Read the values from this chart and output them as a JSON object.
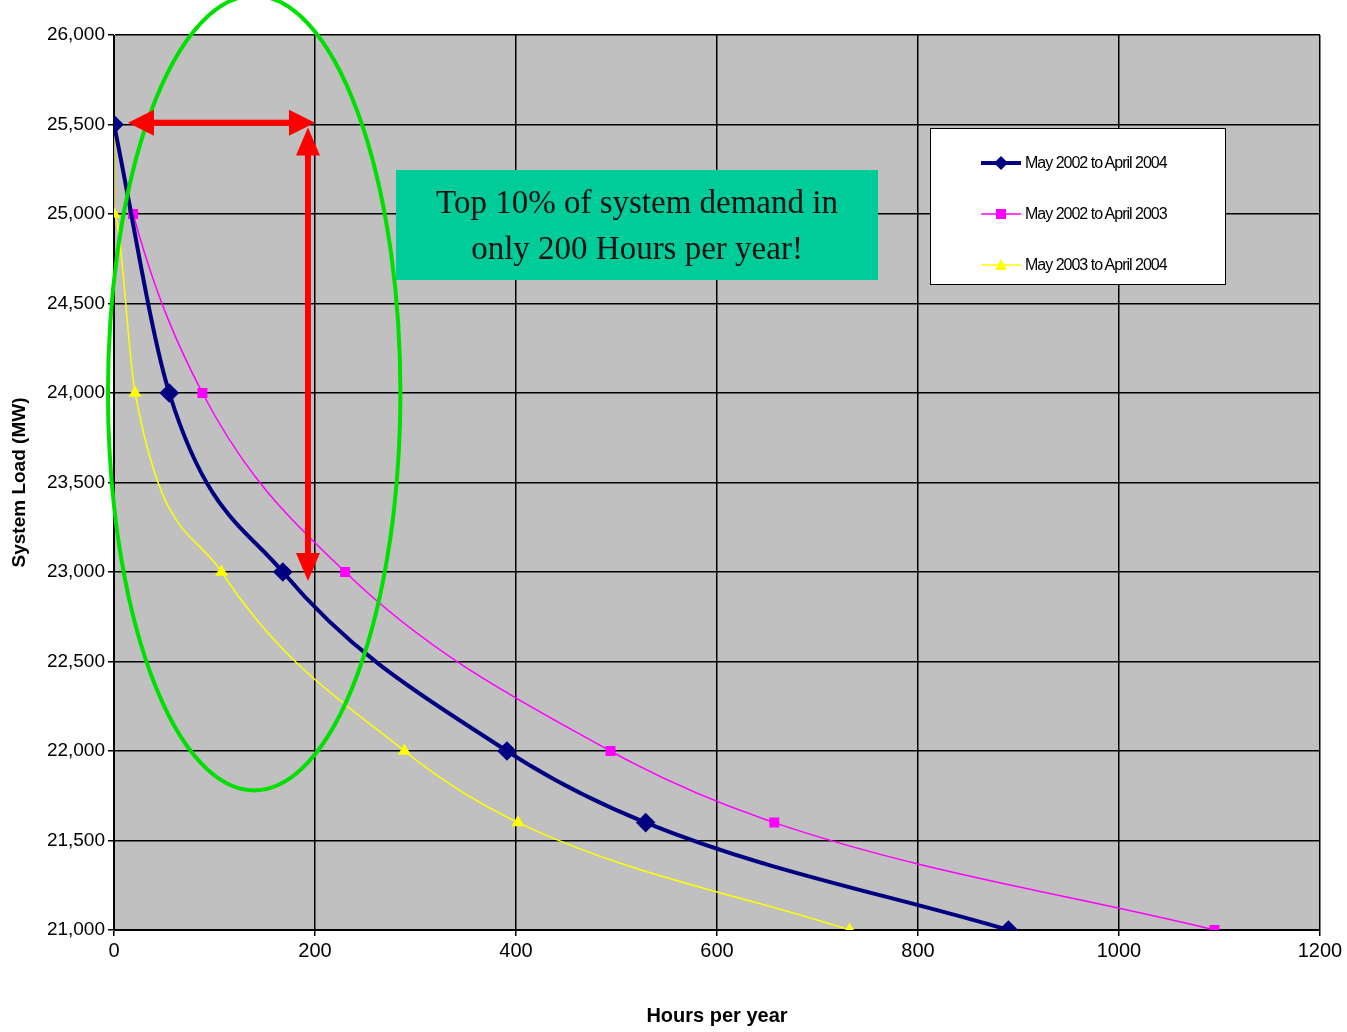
{
  "chart_data": {
    "type": "line",
    "xlabel": "Hours per year",
    "ylabel": "System Load (MW)",
    "xlim": [
      0,
      1200
    ],
    "xticks": [
      0,
      200,
      400,
      600,
      800,
      1000,
      1200
    ],
    "ylim": [
      21000,
      26000
    ],
    "yticks": [
      {
        "value": 21000,
        "label": "21,000"
      },
      {
        "value": 21500,
        "label": "21,500"
      },
      {
        "value": 22000,
        "label": "22,000"
      },
      {
        "value": 22500,
        "label": "22,500"
      },
      {
        "value": 23000,
        "label": "23,000"
      },
      {
        "value": 23500,
        "label": "23,500"
      },
      {
        "value": 24000,
        "label": "24,000"
      },
      {
        "value": 24500,
        "label": "24,500"
      },
      {
        "value": 25000,
        "label": "25,000"
      },
      {
        "value": 25500,
        "label": "25,500"
      },
      {
        "value": 26000,
        "label": "26,000"
      }
    ],
    "grid": true,
    "legend": "top right",
    "series": [
      {
        "name": "May 2002 to April 2004",
        "color": "#000080",
        "marker": "diamond",
        "x": [
          0,
          55,
          168,
          391,
          529,
          890
        ],
        "values": [
          25500,
          24000,
          23000,
          22000,
          21600,
          21000
        ]
      },
      {
        "name": "May 2002 to April 2003",
        "color": "#ff00ff",
        "marker": "square",
        "x": [
          0,
          19,
          88,
          230,
          494,
          657,
          1095
        ],
        "values": [
          25500,
          25000,
          24000,
          23000,
          22000,
          21600,
          21000
        ]
      },
      {
        "name": "May 2003 to April 2004",
        "color": "#ffff00",
        "marker": "triangle",
        "x": [
          0,
          0,
          21,
          107,
          289,
          402,
          732
        ],
        "values": [
          25500,
          25000,
          24000,
          23000,
          22000,
          21600,
          21000
        ]
      }
    ],
    "annotations": [
      "Top 10% of system demand in only 200 Hours per year!"
    ]
  }
}
